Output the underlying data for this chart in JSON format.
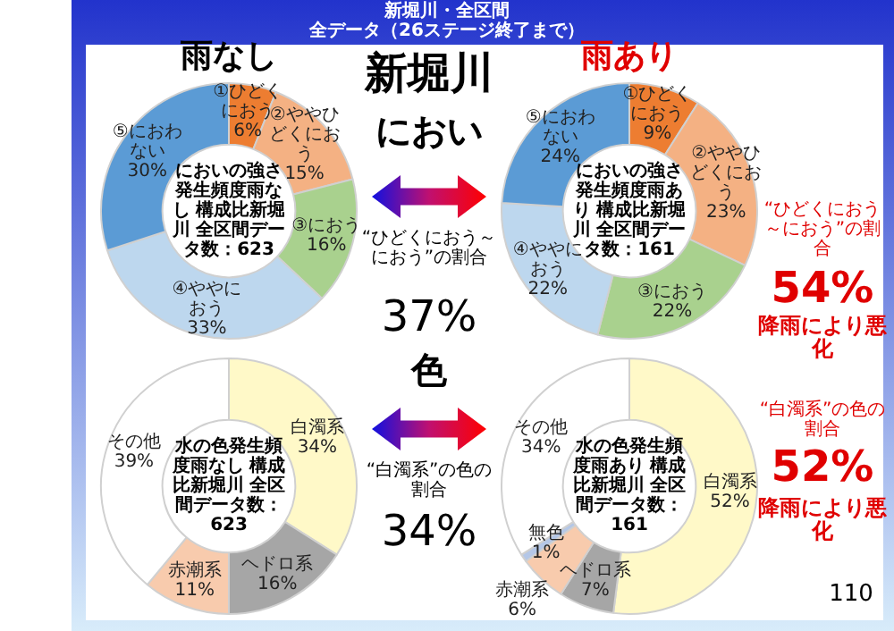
{
  "chart_data": [
    {
      "type": "donut",
      "title": "においの強さ発生頻度雨なし 構成比新堀川 全区間データ数：623",
      "subtitle": "雨なし",
      "categories": [
        "①ひどくにおう",
        "②ややひどくにおう",
        "③におう",
        "④ややにおう",
        "⑤におわない"
      ],
      "values": [
        6,
        15,
        16,
        33,
        30
      ],
      "value_labels": [
        "6%",
        "15%",
        "16%",
        "33%",
        "30%"
      ],
      "colors": [
        "#ed7d31",
        "#f4b183",
        "#a9d18e",
        "#bdd7ee",
        "#5b9bd5"
      ],
      "legend": false,
      "annotations": [
        "新堀川・全区間",
        "全データ（26ステージ終了まで）",
        "新堀川",
        "におい",
        "“ひどくにおう～におう”の割合",
        "37%"
      ]
    },
    {
      "type": "donut",
      "title": "においの強さ発生頻度雨あり 構成比新堀川 全区間データ数：161",
      "subtitle": "雨あり",
      "categories": [
        "①ひどくにおう",
        "②ややひどくにおう",
        "③におう",
        "④ややにおう",
        "⑤におわない"
      ],
      "values": [
        9,
        23,
        22,
        22,
        24
      ],
      "value_labels": [
        "9%",
        "23%",
        "22%",
        "22%",
        "24%"
      ],
      "colors": [
        "#ed7d31",
        "#f4b183",
        "#a9d18e",
        "#bdd7ee",
        "#5b9bd5"
      ],
      "legend": false,
      "annotations": [
        "“ひどくにおう～におう”の割合",
        "54%",
        "降雨により悪化"
      ]
    },
    {
      "type": "donut",
      "title": "水の色発生頻度雨なし 構成比新堀川 全区間データ数：623",
      "categories": [
        "白濁系",
        "ヘドロ系",
        "赤潮系",
        "その他"
      ],
      "values": [
        34,
        16,
        11,
        39
      ],
      "value_labels": [
        "34%",
        "16%",
        "11%",
        "39%"
      ],
      "colors": [
        "#fff9c8",
        "#a6a6a6",
        "#f8cbad",
        "#ffffff"
      ],
      "legend": false,
      "annotations": [
        "色",
        "“白濁系”の色の割合",
        "34%"
      ]
    },
    {
      "type": "donut",
      "title": "水の色発生頻度雨あり 構成比新堀川 全区間データ数：161",
      "categories": [
        "白濁系",
        "ヘドロ系",
        "赤潮系",
        "無色",
        "その他"
      ],
      "values": [
        52,
        7,
        6,
        1,
        34
      ],
      "value_labels": [
        "52%",
        "7%",
        "6%",
        "1%",
        "34%"
      ],
      "colors": [
        "#fff9c8",
        "#a6a6a6",
        "#f8cbad",
        "#b4c7e7",
        "#ffffff"
      ],
      "legend": false,
      "annotations": [
        "“白濁系”の色の割合",
        "52%",
        "降雨により悪化",
        "110"
      ]
    }
  ]
}
